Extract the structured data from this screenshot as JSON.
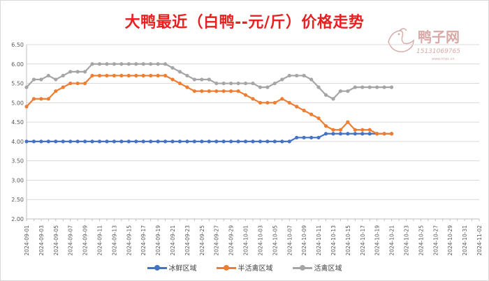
{
  "chart_data": {
    "type": "line",
    "title": "大鸭最近（白鸭--元/斤）价格走势",
    "xlabel": "",
    "ylabel": "",
    "ylim": [
      2.0,
      6.5
    ],
    "yticks": [
      "6.50",
      "6.00",
      "5.50",
      "5.00",
      "4.50",
      "4.00",
      "3.50",
      "3.00",
      "2.50",
      "2.00"
    ],
    "ytick_values": [
      6.5,
      6.0,
      5.5,
      5.0,
      4.5,
      4.0,
      3.5,
      3.0,
      2.5,
      2.0
    ],
    "x_start": "2024-09-01",
    "x_end": "2024-11-02",
    "x_tick_labels": [
      "2024-09-01",
      "2024-09-03",
      "2024-09-05",
      "2024-09-07",
      "2024-09-09",
      "2024-09-11",
      "2024-09-13",
      "2024-09-15",
      "2024-09-17",
      "2024-09-19",
      "2024-09-21",
      "2024-09-23",
      "2024-09-25",
      "2024-09-27",
      "2024-09-29",
      "2024-10-01",
      "2024-10-03",
      "2024-10-05",
      "2024-10-07",
      "2024-10-09",
      "2024-10-11",
      "2024-10-13",
      "2024-10-15",
      "2024-10-17",
      "2024-10-19",
      "2024-10-21",
      "2024-10-23",
      "2024-10-25",
      "2024-10-27",
      "2024-10-29",
      "2024-10-31",
      "2024-11-02"
    ],
    "grid": "horizontal",
    "legend_position": "bottom",
    "series": [
      {
        "name": "冰鲜区域",
        "color": "#4472c4",
        "values": [
          4.0,
          4.0,
          4.0,
          4.0,
          4.0,
          4.0,
          4.0,
          4.0,
          4.0,
          4.0,
          4.0,
          4.0,
          4.0,
          4.0,
          4.0,
          4.0,
          4.0,
          4.0,
          4.0,
          4.0,
          4.0,
          4.0,
          4.0,
          4.0,
          4.0,
          4.0,
          4.0,
          4.0,
          4.0,
          4.0,
          4.0,
          4.0,
          4.0,
          4.0,
          4.0,
          4.0,
          4.0,
          4.1,
          4.1,
          4.1,
          4.1,
          4.2,
          4.2,
          4.2,
          4.2,
          4.2,
          4.2,
          4.2,
          4.2,
          4.2,
          4.2
        ]
      },
      {
        "name": "半活禽区域",
        "color": "#ed7d31",
        "values": [
          4.9,
          5.1,
          5.1,
          5.1,
          5.3,
          5.4,
          5.5,
          5.5,
          5.5,
          5.7,
          5.7,
          5.7,
          5.7,
          5.7,
          5.7,
          5.7,
          5.7,
          5.7,
          5.7,
          5.7,
          5.6,
          5.5,
          5.4,
          5.3,
          5.3,
          5.3,
          5.3,
          5.3,
          5.3,
          5.3,
          5.2,
          5.1,
          5.0,
          5.0,
          5.0,
          5.1,
          5.0,
          4.9,
          4.8,
          4.7,
          4.6,
          4.4,
          4.3,
          4.3,
          4.5,
          4.3,
          4.3,
          4.3,
          4.2,
          4.2,
          4.2
        ]
      },
      {
        "name": "活禽区域",
        "color": "#a5a5a5",
        "values": [
          5.4,
          5.6,
          5.6,
          5.7,
          5.6,
          5.7,
          5.8,
          5.8,
          5.8,
          6.0,
          6.0,
          6.0,
          6.0,
          6.0,
          6.0,
          6.0,
          6.0,
          6.0,
          6.0,
          6.0,
          5.9,
          5.8,
          5.7,
          5.6,
          5.6,
          5.6,
          5.5,
          5.5,
          5.5,
          5.5,
          5.5,
          5.5,
          5.4,
          5.4,
          5.5,
          5.6,
          5.7,
          5.7,
          5.7,
          5.6,
          5.4,
          5.2,
          5.1,
          5.3,
          5.3,
          5.4,
          5.4,
          5.4,
          5.4,
          5.4,
          5.4
        ]
      }
    ]
  },
  "logo": {
    "brand": "鸭子网",
    "phone": "15131069765",
    "site": "www.hnzc.cn",
    "color": "#d7a9a7"
  }
}
